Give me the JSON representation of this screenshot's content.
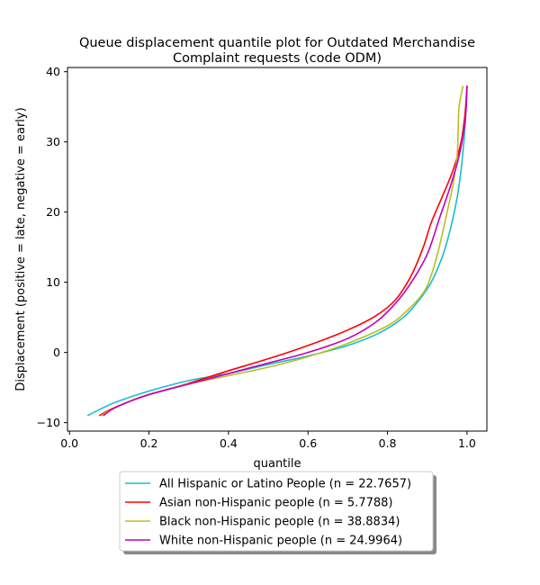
{
  "chart_data": {
    "type": "line",
    "title_lines": [
      "Queue displacement quantile plot for Outdated Merchandise",
      "Complaint  requests (code ODM)"
    ],
    "xlabel": "quantile",
    "ylabel": "Displacement (positive = late, negative = early)",
    "xlim": [
      -0.005,
      1.05
    ],
    "ylim": [
      -11.2,
      40.6
    ],
    "xticks": [
      0.0,
      0.2,
      0.4,
      0.6,
      0.8,
      1.0
    ],
    "xtick_labels": [
      "0.0",
      "0.2",
      "0.4",
      "0.6",
      "0.8",
      "1.0"
    ],
    "yticks": [
      -10,
      0,
      10,
      20,
      30,
      40
    ],
    "ytick_labels": [
      "−10",
      "0",
      "10",
      "20",
      "30",
      "40"
    ],
    "grid": false,
    "legend_position": "below",
    "series": [
      {
        "name": "All Hispanic or Latino People (n = 22.7657)",
        "color": "#17becf",
        "points": [
          [
            0.045,
            -9.0
          ],
          [
            0.08,
            -8.0
          ],
          [
            0.12,
            -7.0
          ],
          [
            0.2,
            -5.5
          ],
          [
            0.3,
            -4.0
          ],
          [
            0.4,
            -3.0
          ],
          [
            0.5,
            -1.7
          ],
          [
            0.6,
            -0.5
          ],
          [
            0.7,
            1.0
          ],
          [
            0.78,
            2.8
          ],
          [
            0.84,
            5.0
          ],
          [
            0.88,
            7.5
          ],
          [
            0.91,
            10.0
          ],
          [
            0.94,
            14.0
          ],
          [
            0.96,
            18.0
          ],
          [
            0.975,
            22.0
          ],
          [
            0.985,
            26.0
          ],
          [
            0.992,
            30.0
          ],
          [
            0.997,
            34.0
          ],
          [
            1.0,
            38.0
          ]
        ]
      },
      {
        "name": "Asian non-Hispanic people (n = 5.7788)",
        "color": "#ff0000",
        "points": [
          [
            0.075,
            -9.0
          ],
          [
            0.1,
            -8.2
          ],
          [
            0.15,
            -7.0
          ],
          [
            0.2,
            -6.0
          ],
          [
            0.3,
            -4.4
          ],
          [
            0.4,
            -2.6
          ],
          [
            0.5,
            -0.9
          ],
          [
            0.6,
            1.0
          ],
          [
            0.7,
            3.2
          ],
          [
            0.77,
            5.2
          ],
          [
            0.82,
            7.5
          ],
          [
            0.86,
            11.0
          ],
          [
            0.89,
            15.0
          ],
          [
            0.91,
            18.5
          ],
          [
            0.94,
            22.5
          ],
          [
            0.965,
            26.0
          ],
          [
            0.985,
            30.0
          ],
          [
            0.995,
            34.0
          ],
          [
            1.0,
            38.0
          ]
        ]
      },
      {
        "name": "Black non-Hispanic people (n = 38.8834)",
        "color": "#bcbd22",
        "points": [
          [
            0.08,
            -9.0
          ],
          [
            0.1,
            -8.3
          ],
          [
            0.15,
            -7.0
          ],
          [
            0.2,
            -6.0
          ],
          [
            0.3,
            -4.5
          ],
          [
            0.4,
            -3.3
          ],
          [
            0.5,
            -2.1
          ],
          [
            0.6,
            -0.6
          ],
          [
            0.7,
            1.3
          ],
          [
            0.8,
            3.8
          ],
          [
            0.85,
            6.0
          ],
          [
            0.89,
            8.5
          ],
          [
            0.91,
            11.0
          ],
          [
            0.93,
            15.0
          ],
          [
            0.95,
            20.0
          ],
          [
            0.965,
            24.0
          ],
          [
            0.975,
            28.0
          ],
          [
            0.978,
            32.0
          ],
          [
            0.98,
            35.0
          ],
          [
            0.99,
            38.0
          ]
        ]
      },
      {
        "name": "White non-Hispanic people (n = 24.9964)",
        "color": "#bf00bf",
        "points": [
          [
            0.085,
            -9.0
          ],
          [
            0.11,
            -8.0
          ],
          [
            0.15,
            -7.0
          ],
          [
            0.2,
            -6.0
          ],
          [
            0.3,
            -4.5
          ],
          [
            0.4,
            -3.0
          ],
          [
            0.5,
            -1.5
          ],
          [
            0.6,
            0.0
          ],
          [
            0.7,
            2.0
          ],
          [
            0.77,
            4.3
          ],
          [
            0.82,
            7.0
          ],
          [
            0.86,
            10.0
          ],
          [
            0.9,
            14.0
          ],
          [
            0.93,
            19.0
          ],
          [
            0.96,
            24.0
          ],
          [
            0.98,
            28.0
          ],
          [
            0.993,
            32.0
          ],
          [
            0.998,
            35.0
          ],
          [
            1.0,
            38.0
          ]
        ]
      }
    ]
  }
}
